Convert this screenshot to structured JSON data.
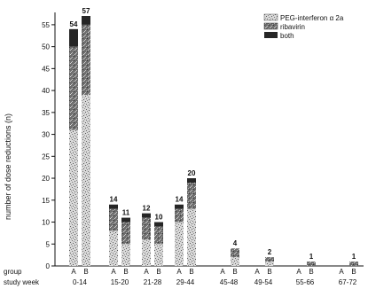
{
  "chart_data": {
    "type": "bar",
    "stacked": true,
    "ylabel": "number of dose reductions (n)",
    "ylim": [
      0,
      57
    ],
    "yticks": [
      0,
      5,
      10,
      15,
      20,
      25,
      30,
      35,
      40,
      45,
      50,
      55
    ],
    "row_labels": {
      "group": "group",
      "study_week": "study week"
    },
    "group_letters": [
      "A",
      "B"
    ],
    "week_categories": [
      "0-14",
      "15-20",
      "21-28",
      "29-44",
      "45-48",
      "49-54",
      "55-66",
      "67-72"
    ],
    "legend": {
      "placement": "top-right",
      "entries": [
        {
          "label": "PEG-interferon α 2a",
          "pattern": "speckle",
          "color": "#bdbdbd"
        },
        {
          "label": "ribavirin",
          "pattern": "dark-speckle",
          "color": "#707070"
        },
        {
          "label": "both",
          "pattern": "solid",
          "color": "#262626"
        }
      ]
    },
    "bars": [
      {
        "week": "0-14",
        "group": "A",
        "total": 54,
        "segments": {
          "peg": 31,
          "ribavirin": 19,
          "both": 4
        }
      },
      {
        "week": "0-14",
        "group": "B",
        "total": 57,
        "segments": {
          "peg": 39,
          "ribavirin": 16,
          "both": 2
        }
      },
      {
        "week": "15-20",
        "group": "A",
        "total": 14,
        "segments": {
          "peg": 8,
          "ribavirin": 5,
          "both": 1
        }
      },
      {
        "week": "15-20",
        "group": "B",
        "total": 11,
        "segments": {
          "peg": 5,
          "ribavirin": 5,
          "both": 1
        }
      },
      {
        "week": "21-28",
        "group": "A",
        "total": 12,
        "segments": {
          "peg": 6,
          "ribavirin": 5,
          "both": 1
        }
      },
      {
        "week": "21-28",
        "group": "B",
        "total": 10,
        "segments": {
          "peg": 5,
          "ribavirin": 4,
          "both": 1
        }
      },
      {
        "week": "29-44",
        "group": "A",
        "total": 14,
        "segments": {
          "peg": 10,
          "ribavirin": 3,
          "both": 1
        }
      },
      {
        "week": "29-44",
        "group": "B",
        "total": 20,
        "segments": {
          "peg": 13,
          "ribavirin": 6,
          "both": 1
        }
      },
      {
        "week": "45-48",
        "group": "A",
        "total": 0,
        "segments": {
          "peg": 0,
          "ribavirin": 0,
          "both": 0
        }
      },
      {
        "week": "45-48",
        "group": "B",
        "total": 4,
        "segments": {
          "peg": 2,
          "ribavirin": 2,
          "both": 0
        }
      },
      {
        "week": "49-54",
        "group": "A",
        "total": 0,
        "segments": {
          "peg": 0,
          "ribavirin": 0,
          "both": 0
        }
      },
      {
        "week": "49-54",
        "group": "B",
        "total": 2,
        "segments": {
          "peg": 1,
          "ribavirin": 1,
          "both": 0
        }
      },
      {
        "week": "55-66",
        "group": "A",
        "total": 0,
        "segments": {
          "peg": 0,
          "ribavirin": 0,
          "both": 0
        }
      },
      {
        "week": "55-66",
        "group": "B",
        "total": 1,
        "segments": {
          "peg": 0,
          "ribavirin": 1,
          "both": 0
        }
      },
      {
        "week": "67-72",
        "group": "A",
        "total": 0,
        "segments": {
          "peg": 0,
          "ribavirin": 0,
          "both": 0
        }
      },
      {
        "week": "67-72",
        "group": "B",
        "total": 1,
        "segments": {
          "peg": 0,
          "ribavirin": 1,
          "both": 0
        }
      }
    ]
  }
}
